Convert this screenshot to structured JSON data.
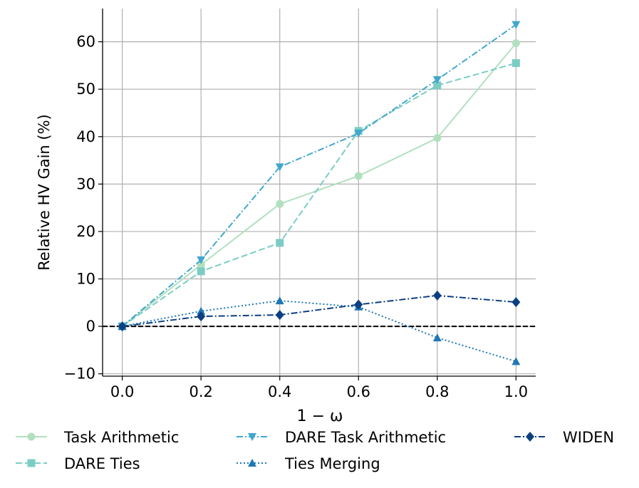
{
  "chart_data": {
    "type": "line",
    "title": "",
    "xlabel": "1 − ω",
    "ylabel": "Relative HV Gain (%)",
    "x": [
      0.0,
      0.2,
      0.4,
      0.6,
      0.8,
      1.0
    ],
    "xlim": [
      -0.05,
      1.05
    ],
    "ylim": [
      -10.5,
      67
    ],
    "x_ticks": [
      0.0,
      0.2,
      0.4,
      0.6,
      0.8,
      1.0
    ],
    "x_tick_labels": [
      "0.0",
      "0.2",
      "0.4",
      "0.6",
      "0.8",
      "1.0"
    ],
    "y_ticks": [
      -10,
      0,
      10,
      20,
      30,
      40,
      50,
      60
    ],
    "y_tick_labels": [
      "−10",
      "0",
      "10",
      "20",
      "30",
      "40",
      "50",
      "60"
    ],
    "grid": true,
    "reference_line": {
      "y": 0,
      "style": "dashed",
      "color": "#000000"
    },
    "legend_position": "bottom",
    "series": [
      {
        "name": "Task Arithmetic",
        "values": [
          0,
          13.0,
          25.8,
          31.7,
          39.7,
          59.7
        ],
        "color": "#b2e0bf",
        "dash": "solid",
        "marker": "circle"
      },
      {
        "name": "DARE Ties",
        "values": [
          0,
          11.6,
          17.6,
          41.2,
          50.8,
          55.5
        ],
        "color": "#7bcdc4",
        "dash": "dashed",
        "marker": "square"
      },
      {
        "name": "DARE Task Arithmetic",
        "values": [
          0,
          14.0,
          33.6,
          40.7,
          52.0,
          63.6
        ],
        "color": "#41a7cd",
        "dash": "dashdot",
        "marker": "triangle-down"
      },
      {
        "name": "Ties Merging",
        "values": [
          0,
          3.2,
          5.4,
          4.1,
          -2.4,
          -7.4
        ],
        "color": "#1f77b4",
        "dash": "dotted",
        "marker": "triangle-up"
      },
      {
        "name": "WIDEN",
        "values": [
          0,
          2.1,
          2.4,
          4.6,
          6.5,
          5.1
        ],
        "color": "#0c3f80",
        "dash": "dashdot",
        "marker": "diamond"
      }
    ]
  }
}
